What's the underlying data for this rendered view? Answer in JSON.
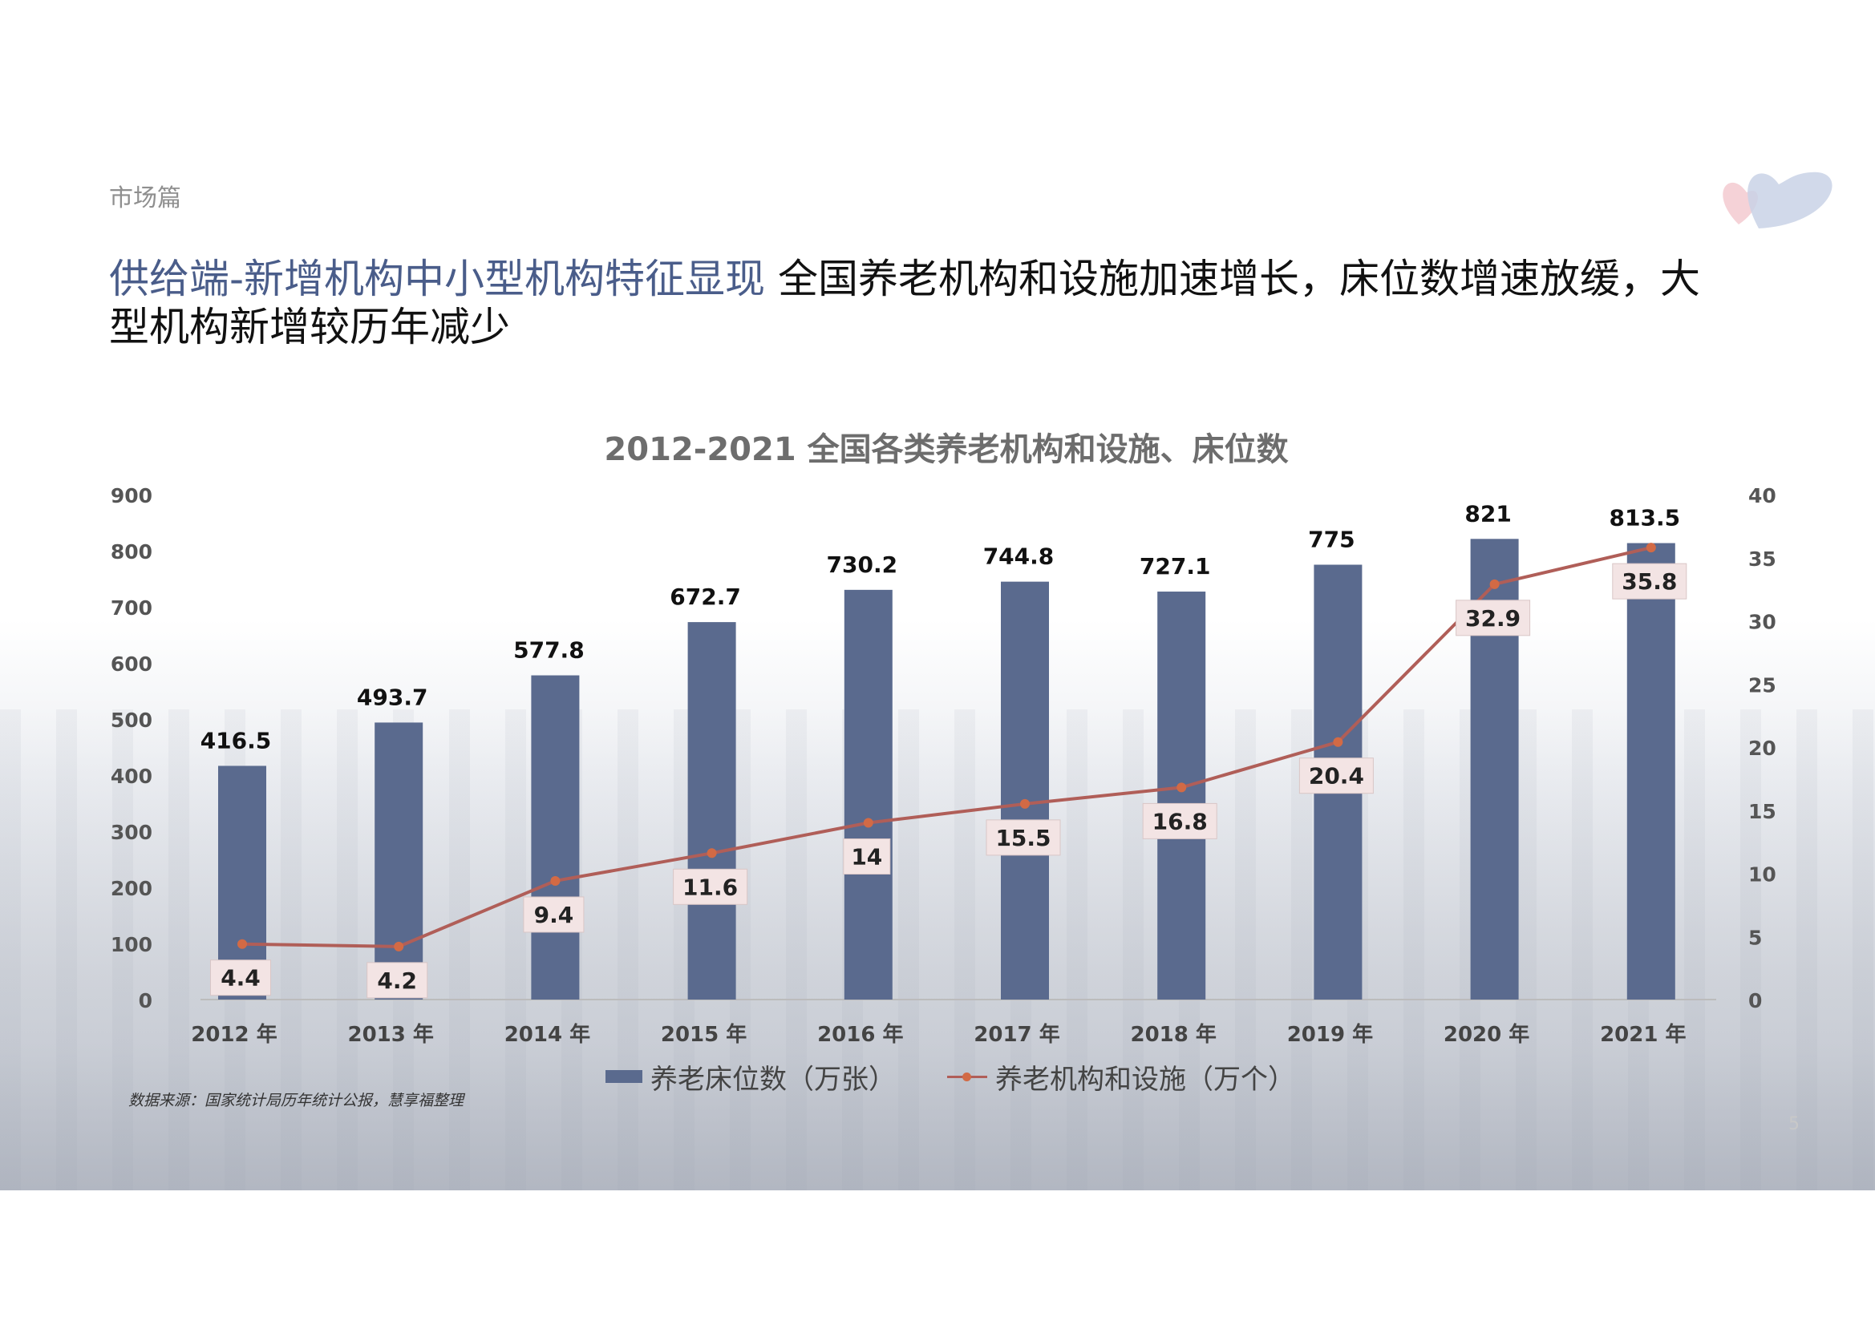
{
  "section": "市场篇",
  "heading": {
    "highlight": "供给端-新增机构中小型机构特征显现",
    "body": "全国养老机构和设施加速增长，床位数增速放缓，大型机构新增较历年减少"
  },
  "source": "数据来源：国家统计局历年统计公报，慧享福整理",
  "page_number": "5",
  "colors": {
    "bar": "#5a6a8e",
    "line": "#b05e58",
    "marker": "#d26a45",
    "heading_highlight": "#4a5d8a"
  },
  "chart_data": {
    "type": "bar",
    "title": "2012-2021 全国各类养老机构和设施、床位数",
    "categories": [
      "2012 年",
      "2013 年",
      "2014 年",
      "2015 年",
      "2016 年",
      "2017 年",
      "2018 年",
      "2019 年",
      "2020 年",
      "2021 年"
    ],
    "series": [
      {
        "name": "养老床位数（万张）",
        "type": "bar",
        "axis": "left",
        "values": [
          416.5,
          493.7,
          577.8,
          672.7,
          730.2,
          744.8,
          727.1,
          775,
          821,
          813.5
        ],
        "labels": [
          "416.5",
          "493.7",
          "577.8",
          "672.7",
          "730.2",
          "744.8",
          "727.1",
          "775",
          "821",
          "813.5"
        ]
      },
      {
        "name": "养老机构和设施（万个）",
        "type": "line",
        "axis": "right",
        "values": [
          4.4,
          4.2,
          9.4,
          11.6,
          14,
          15.5,
          16.8,
          20.4,
          32.9,
          35.8
        ],
        "labels": [
          "4.4",
          "4.2",
          "9.4",
          "11.6",
          "14",
          "15.5",
          "16.8",
          "20.4",
          "32.9",
          "35.8"
        ]
      }
    ],
    "left_axis": {
      "ticks": [
        0,
        100,
        200,
        300,
        400,
        500,
        600,
        700,
        800,
        900
      ],
      "tick_labels": [
        "0",
        "100",
        "200",
        "300",
        "400",
        "500",
        "600",
        "700",
        "800",
        "900"
      ]
    },
    "right_axis": {
      "ticks": [
        0,
        5,
        10,
        15,
        20,
        25,
        30,
        35,
        40
      ],
      "tick_labels": [
        "0",
        "5",
        "10",
        "15",
        "20",
        "25",
        "30",
        "35",
        "40"
      ]
    },
    "legend": "bottom",
    "grid": false
  }
}
